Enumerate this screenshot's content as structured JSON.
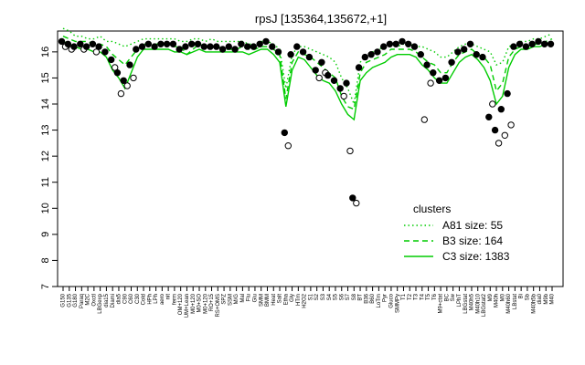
{
  "chart_data": {
    "type": "line",
    "title": "rpsJ [135364,135672,+1]",
    "xlabel": "",
    "ylabel": "",
    "ylim": [
      7,
      16.8
    ],
    "yticks": [
      7,
      8,
      9,
      10,
      11,
      12,
      13,
      14,
      15,
      16
    ],
    "line_color": "#00cc00",
    "legend": {
      "title": "clusters",
      "placement": "right",
      "entries": [
        {
          "label": "A81 size: 55",
          "style": "dotted"
        },
        {
          "label": "B3 size: 164",
          "style": "dashed"
        },
        {
          "label": "C3 size: 1383",
          "style": "solid"
        }
      ]
    },
    "categories": [
      "G150",
      "G135",
      "G180",
      "Paraq",
      "M2C",
      "Oxctl",
      "LBGexp",
      "dia15",
      "Diami",
      "dia5",
      "C90",
      "C60",
      "C30",
      "Cold",
      "HPh",
      "LPh",
      "aero",
      "nit",
      "ferm",
      "OM+120",
      "UM+Lean",
      "M0+120",
      "M0+SO",
      "M0+120",
      "RO+15",
      "RS+OMS",
      "SPZ",
      "SSM",
      "M/G",
      "Mal",
      "Flu",
      "Glu",
      "SMM",
      "BMM",
      "Heat",
      "Salt",
      "Etha",
      "Gly",
      "HTm",
      "H2O2",
      "S1",
      "S2",
      "S3",
      "S4",
      "S5",
      "S6",
      "S7",
      "S8",
      "BT",
      "B36",
      "B60",
      "LoTm",
      "Pyr",
      "Gluco",
      "SMMPy",
      "T1",
      "T2",
      "T3",
      "T4",
      "T5",
      "T6",
      "M9+ctat",
      "BC",
      "Sw",
      "LPhT",
      "LBGstat",
      "M40h5",
      "M40h10",
      "LBGstat2",
      "M9",
      "M40h",
      "M0",
      "M40h60",
      "LBstat",
      "Bi",
      "Sb",
      "M40h5b",
      "dia0",
      "M9b",
      "M40"
    ],
    "series": [
      {
        "name": "A81 size: 55",
        "style": "dotted",
        "values": [
          16.9,
          16.8,
          16.6,
          16.6,
          16.5,
          16.5,
          16.6,
          16.4,
          16.4,
          16.3,
          16.2,
          16.3,
          16.4,
          16.5,
          16.5,
          16.5,
          16.5,
          16.5,
          16.5,
          16.4,
          16.4,
          16.5,
          16.5,
          16.4,
          16.5,
          16.4,
          16.4,
          16.4,
          16.4,
          16.4,
          16.3,
          16.3,
          16.4,
          16.4,
          16.3,
          16.1,
          14.6,
          15.9,
          16.2,
          16.2,
          16.1,
          16.0,
          15.9,
          15.8,
          15.6,
          15.0,
          14.6,
          14.0,
          15.6,
          15.9,
          16.0,
          16.1,
          16.2,
          16.3,
          16.2,
          16.3,
          16.3,
          16.2,
          16.2,
          16.1,
          16.0,
          15.8,
          15.8,
          16.0,
          16.2,
          16.3,
          16.3,
          16.2,
          16.1,
          16.0,
          15.5,
          15.6,
          16.2,
          16.3,
          16.4,
          16.4,
          16.5,
          16.5,
          16.6,
          16.7
        ]
      },
      {
        "name": "B3 size: 164",
        "style": "dashed",
        "values": [
          16.6,
          16.5,
          16.4,
          16.4,
          16.4,
          16.3,
          16.3,
          16.2,
          15.9,
          15.7,
          15.5,
          15.8,
          16.1,
          16.3,
          16.3,
          16.3,
          16.3,
          16.3,
          16.2,
          16.2,
          15.9,
          16.1,
          16.3,
          16.2,
          16.2,
          16.2,
          16.1,
          16.1,
          16.1,
          16.2,
          16.1,
          16.1,
          16.2,
          16.2,
          16.1,
          15.9,
          14.2,
          15.6,
          16.0,
          15.9,
          15.8,
          15.6,
          15.4,
          15.2,
          15.0,
          14.3,
          13.9,
          13.8,
          15.2,
          15.6,
          15.7,
          15.8,
          15.9,
          16.1,
          16.1,
          16.1,
          16.1,
          16.0,
          15.8,
          15.6,
          15.5,
          15.2,
          15.2,
          15.6,
          15.9,
          16.0,
          16.1,
          15.9,
          15.8,
          15.5,
          14.5,
          14.8,
          15.8,
          16.1,
          16.2,
          16.2,
          16.3,
          16.3,
          16.4,
          16.5
        ]
      },
      {
        "name": "C3 size: 1383",
        "style": "solid",
        "values": [
          16.4,
          16.3,
          16.2,
          16.1,
          16.1,
          16.0,
          16.0,
          15.8,
          15.3,
          15.0,
          14.6,
          15.2,
          15.8,
          16.1,
          16.1,
          16.1,
          16.1,
          16.1,
          16.0,
          16.0,
          15.9,
          16.0,
          16.1,
          16.0,
          16.0,
          16.0,
          16.0,
          16.0,
          16.0,
          16.0,
          15.9,
          16.0,
          16.1,
          16.1,
          15.9,
          15.6,
          13.9,
          15.3,
          15.8,
          15.7,
          15.4,
          15.1,
          14.9,
          14.8,
          14.5,
          14.0,
          13.6,
          13.4,
          14.9,
          15.2,
          15.4,
          15.5,
          15.6,
          15.8,
          15.9,
          15.9,
          15.9,
          15.8,
          15.5,
          15.3,
          15.0,
          14.8,
          14.8,
          15.2,
          15.6,
          15.8,
          15.9,
          15.7,
          15.4,
          14.9,
          14.0,
          14.3,
          15.4,
          15.9,
          16.1,
          16.1,
          16.2,
          16.2,
          16.3,
          16.4
        ]
      }
    ],
    "points": [
      [
        [
          16.4,
          16.2
        ]
      ],
      [
        [
          16.3,
          16.1
        ]
      ],
      [
        [
          16.2
        ]
      ],
      [
        [
          16.3,
          16.1
        ]
      ],
      [
        [
          16.2
        ]
      ],
      [
        [
          16.3,
          16.0
        ]
      ],
      [
        [
          16.2
        ]
      ],
      [
        [
          16.0
        ]
      ],
      [
        [
          15.7,
          15.4
        ]
      ],
      [
        [
          15.2,
          14.4
        ]
      ],
      [
        [
          14.9,
          14.7
        ]
      ],
      [
        [
          15.5,
          15.0
        ]
      ],
      [
        [
          16.1
        ]
      ],
      [
        [
          16.2
        ]
      ],
      [
        [
          16.3
        ]
      ],
      [
        [
          16.2
        ]
      ],
      [
        [
          16.3
        ]
      ],
      [
        [
          16.3
        ]
      ],
      [
        [
          16.3
        ]
      ],
      [
        [
          16.1
        ]
      ],
      [
        [
          16.2
        ]
      ],
      [
        [
          16.3
        ]
      ],
      [
        [
          16.3
        ]
      ],
      [
        [
          16.2
        ]
      ],
      [
        [
          16.2
        ]
      ],
      [
        [
          16.2
        ]
      ],
      [
        [
          16.1
        ]
      ],
      [
        [
          16.2
        ]
      ],
      [
        [
          16.1
        ]
      ],
      [
        [
          16.3
        ]
      ],
      [
        [
          16.2
        ]
      ],
      [
        [
          16.2
        ]
      ],
      [
        [
          16.3
        ]
      ],
      [
        [
          16.4
        ]
      ],
      [
        [
          16.2
        ]
      ],
      [
        [
          16.0
        ]
      ],
      [
        [
          12.9,
          12.4
        ]
      ],
      [
        [
          15.9
        ]
      ],
      [
        [
          16.2
        ]
      ],
      [
        [
          16.0
        ]
      ],
      [
        [
          15.8
        ]
      ],
      [
        [
          15.3,
          15.0
        ]
      ],
      [
        [
          15.6,
          15.2
        ]
      ],
      [
        [
          15.1
        ]
      ],
      [
        [
          14.9
        ]
      ],
      [
        [
          14.6,
          14.3
        ]
      ],
      [
        [
          14.8,
          12.2
        ]
      ],
      [
        [
          10.4,
          10.2
        ]
      ],
      [
        [
          15.4
        ]
      ],
      [
        [
          15.8
        ]
      ],
      [
        [
          15.9
        ]
      ],
      [
        [
          16.0
        ]
      ],
      [
        [
          16.2
        ]
      ],
      [
        [
          16.3
        ]
      ],
      [
        [
          16.3
        ]
      ],
      [
        [
          16.4
        ]
      ],
      [
        [
          16.3
        ]
      ],
      [
        [
          16.2
        ]
      ],
      [
        [
          15.9,
          13.4
        ]
      ],
      [
        [
          15.5,
          14.8
        ]
      ],
      [
        [
          15.2
        ]
      ],
      [
        [
          14.9
        ]
      ],
      [
        [
          15.0
        ]
      ],
      [
        [
          15.6
        ]
      ],
      [
        [
          16.0
        ]
      ],
      [
        [
          16.1
        ]
      ],
      [
        [
          16.3
        ]
      ],
      [
        [
          15.9
        ]
      ],
      [
        [
          15.8
        ]
      ],
      [
        [
          13.5,
          14.0
        ]
      ],
      [
        [
          13.0,
          12.5
        ]
      ],
      [
        [
          13.8,
          12.8
        ]
      ],
      [
        [
          14.4,
          13.2
        ]
      ],
      [
        [
          16.2
        ]
      ],
      [
        [
          16.3
        ]
      ],
      [
        [
          16.2
        ]
      ],
      [
        [
          16.3
        ]
      ],
      [
        [
          16.4
        ]
      ],
      [
        [
          16.3
        ]
      ],
      [
        [
          16.3
        ]
      ]
    ]
  }
}
